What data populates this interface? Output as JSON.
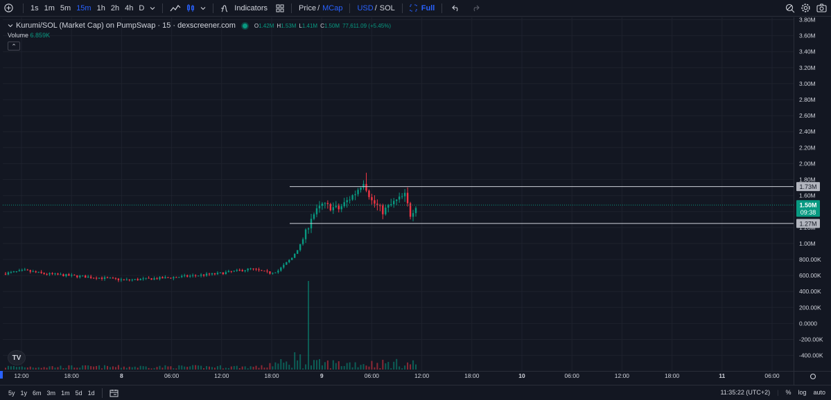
{
  "toolbar": {
    "timeframes": [
      "1s",
      "1m",
      "5m",
      "15m",
      "1h",
      "2h",
      "4h",
      "D"
    ],
    "active_timeframe": "15m",
    "indicators_label": "Indicators",
    "price_label": "Price",
    "mcap_label": "MCap",
    "usd_label": "USD",
    "sol_label": "SOL",
    "full_label": "Full"
  },
  "legend": {
    "title": "Kurumi/SOL (Market Cap) on PumpSwap · 15 · dexscreener.com",
    "o_label": "O",
    "o_value": "1.42M",
    "h_label": "H",
    "h_value": "1.53M",
    "l_label": "L",
    "l_value": "1.41M",
    "c_label": "C",
    "c_value": "1.50M",
    "change": "77,611.09 (+5.45%)",
    "volume_label": "Volume",
    "volume_value": "6.859K"
  },
  "chart_data": {
    "type": "candlestick",
    "y_ticks": [
      "3.80M",
      "3.60M",
      "3.40M",
      "3.20M",
      "3.00M",
      "2.80M",
      "2.60M",
      "2.40M",
      "2.20M",
      "2.00M",
      "1.80M",
      "1.60M",
      "1.40M",
      "1.20M",
      "1.00M",
      "800.00K",
      "600.00K",
      "400.00K",
      "200.00K",
      "0.0000",
      "-200.00K",
      "-400.00K"
    ],
    "x_ticks": [
      "12:00",
      "18:00",
      "8",
      "06:00",
      "12:00",
      "18:00",
      "9",
      "06:00",
      "12:00",
      "18:00",
      "10",
      "06:00",
      "12:00",
      "18:00",
      "11",
      "06:00"
    ],
    "bold_x_ticks": [
      "8",
      "9",
      "10",
      "11"
    ],
    "horizontal_lines": [
      {
        "label": "1.73M",
        "value": 1730000
      },
      {
        "label": "1.27M",
        "value": 1270000
      }
    ],
    "current_price": {
      "label": "1.50M",
      "countdown": "09:38",
      "value": 1500000
    }
  },
  "bottombar": {
    "ranges": [
      "5y",
      "1y",
      "6m",
      "3m",
      "1m",
      "5d",
      "1d"
    ],
    "time": "11:35:22 (UTC+2)",
    "percent_label": "%",
    "log_label": "log",
    "auto_label": "auto"
  },
  "colors": {
    "up": "#089981",
    "down": "#f23645",
    "background": "#131722",
    "grid": "#1e222d",
    "accent": "#2962ff"
  }
}
